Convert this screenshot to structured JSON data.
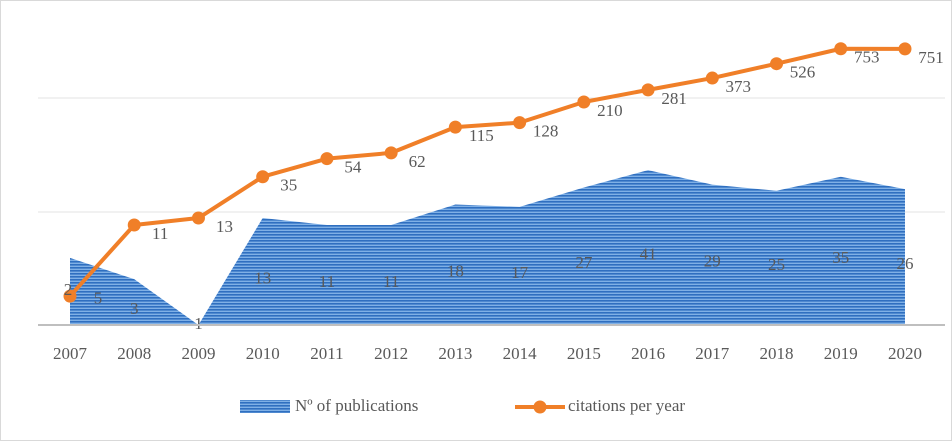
{
  "chart_data": {
    "type": "area-line",
    "categories": [
      "2007",
      "2008",
      "2009",
      "2010",
      "2011",
      "2012",
      "2013",
      "2014",
      "2015",
      "2016",
      "2017",
      "2018",
      "2019",
      "2020"
    ],
    "series": [
      {
        "name": "Nº of publications",
        "type": "area",
        "color": "#4a86cf",
        "values": [
          5,
          3,
          1,
          13,
          11,
          11,
          18,
          17,
          27,
          41,
          29,
          25,
          35,
          26
        ]
      },
      {
        "name": "citations per year",
        "type": "line",
        "color": "#f07f28",
        "values": [
          2,
          11,
          13,
          35,
          54,
          62,
          115,
          128,
          210,
          281,
          373,
          526,
          753,
          751
        ]
      }
    ],
    "ylim": [
      1,
      1500
    ],
    "log_scale": true,
    "grid": true,
    "legend": "bottom"
  }
}
